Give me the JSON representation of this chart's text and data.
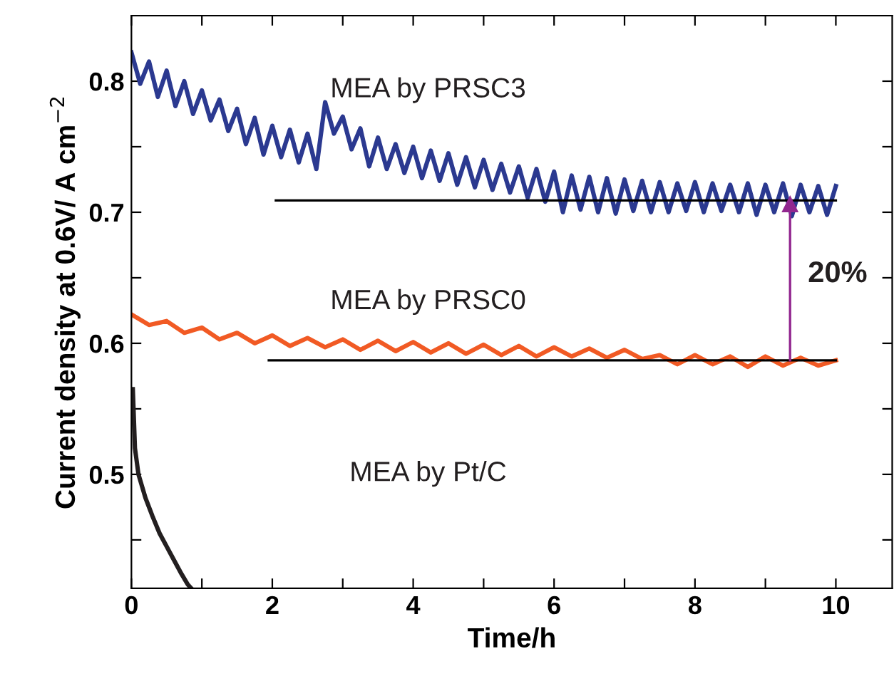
{
  "chart_data": {
    "type": "line",
    "xlabel": "Time/h",
    "ylabel": "Current density at 0.6V/ A cm$^{−2}$",
    "xlim": [
      0,
      10.8
    ],
    "ylim": [
      0.413,
      0.85
    ],
    "xticks": [
      0,
      {
        "value": 1,
        "label": null
      },
      2,
      {
        "value": 3,
        "label": null
      },
      4,
      {
        "value": 5,
        "label": null
      },
      6,
      {
        "value": 7,
        "label": null
      },
      8,
      {
        "value": 9,
        "label": null
      },
      10
    ],
    "yticks": [
      {
        "value": 0.45,
        "label": null
      },
      0.5,
      {
        "value": 0.55,
        "label": null
      },
      0.6,
      {
        "value": 0.65,
        "label": null
      },
      0.7,
      {
        "value": 0.75,
        "label": null
      },
      0.8
    ],
    "grid": false,
    "legend": false,
    "marker": "none",
    "line_style": "solid",
    "series": [
      {
        "name": "MEA by PRSC3",
        "color": "#2b3990",
        "x": [
          0,
          0.125,
          0.25,
          0.375,
          0.5,
          0.625,
          0.75,
          0.875,
          1.0,
          1.125,
          1.25,
          1.375,
          1.5,
          1.625,
          1.75,
          1.875,
          2.0,
          2.125,
          2.25,
          2.375,
          2.5,
          2.625,
          2.75,
          2.875,
          3.0,
          3.125,
          3.25,
          3.375,
          3.5,
          3.625,
          3.75,
          3.875,
          4.0,
          4.125,
          4.25,
          4.375,
          4.5,
          4.625,
          4.75,
          4.875,
          5.0,
          5.125,
          5.25,
          5.375,
          5.5,
          5.625,
          5.75,
          5.875,
          6.0,
          6.125,
          6.25,
          6.375,
          6.5,
          6.625,
          6.75,
          6.875,
          7.0,
          7.125,
          7.25,
          7.375,
          7.5,
          7.625,
          7.75,
          7.875,
          8.0,
          8.125,
          8.25,
          8.375,
          8.5,
          8.625,
          8.75,
          8.875,
          9.0,
          9.125,
          9.25,
          9.375,
          9.5,
          9.625,
          9.75,
          9.875,
          10.0
        ],
        "values": [
          0.822,
          0.798,
          0.815,
          0.788,
          0.808,
          0.781,
          0.8,
          0.775,
          0.793,
          0.77,
          0.786,
          0.762,
          0.779,
          0.752,
          0.772,
          0.744,
          0.766,
          0.742,
          0.763,
          0.738,
          0.76,
          0.733,
          0.784,
          0.76,
          0.773,
          0.748,
          0.764,
          0.735,
          0.757,
          0.733,
          0.752,
          0.73,
          0.75,
          0.726,
          0.747,
          0.724,
          0.745,
          0.721,
          0.742,
          0.719,
          0.74,
          0.717,
          0.737,
          0.715,
          0.735,
          0.711,
          0.733,
          0.708,
          0.731,
          0.7,
          0.728,
          0.702,
          0.727,
          0.7,
          0.726,
          0.699,
          0.725,
          0.701,
          0.724,
          0.7,
          0.723,
          0.7,
          0.722,
          0.701,
          0.723,
          0.7,
          0.722,
          0.701,
          0.721,
          0.7,
          0.722,
          0.698,
          0.721,
          0.7,
          0.722,
          0.697,
          0.721,
          0.7,
          0.72,
          0.698,
          0.72
        ]
      },
      {
        "name": "MEA by PRSC0",
        "color": "#f15a24",
        "x": [
          0,
          0.25,
          0.5,
          0.75,
          1.0,
          1.25,
          1.5,
          1.75,
          2.0,
          2.25,
          2.5,
          2.75,
          3.0,
          3.25,
          3.5,
          3.75,
          4.0,
          4.25,
          4.5,
          4.75,
          5.0,
          5.25,
          5.5,
          5.75,
          6.0,
          6.25,
          6.5,
          6.75,
          7.0,
          7.25,
          7.5,
          7.75,
          8.0,
          8.25,
          8.5,
          8.75,
          9.0,
          9.25,
          9.5,
          9.75,
          10.0
        ],
        "values": [
          0.622,
          0.614,
          0.617,
          0.608,
          0.612,
          0.603,
          0.608,
          0.6,
          0.606,
          0.598,
          0.604,
          0.597,
          0.603,
          0.595,
          0.602,
          0.594,
          0.601,
          0.593,
          0.6,
          0.592,
          0.599,
          0.591,
          0.598,
          0.59,
          0.597,
          0.59,
          0.596,
          0.589,
          0.595,
          0.588,
          0.591,
          0.584,
          0.591,
          0.584,
          0.59,
          0.582,
          0.59,
          0.583,
          0.589,
          0.583,
          0.587
        ]
      },
      {
        "color": "#231f20",
        "x": [
          0.02,
          0.05,
          0.1,
          0.2,
          0.3,
          0.4,
          0.5,
          0.6,
          0.7,
          0.8,
          0.85
        ],
        "values": [
          0.565,
          0.52,
          0.5,
          0.482,
          0.468,
          0.455,
          0.445,
          0.435,
          0.425,
          0.416,
          0.413
        ]
      },
      {
        "color": "#000000",
        "x": [
          2.05,
          10
        ],
        "values": [
          0.709,
          0.709
        ]
      },
      {
        "color": "#000000",
        "x": [
          1.95,
          10
        ],
        "values": [
          0.587,
          0.587
        ]
      },
      {
        "color": "#92278f",
        "x": [
          9.35,
          9.35
        ],
        "values": [
          0.587,
          0.706
        ],
        "marker": "triangle"
      }
    ],
    "annotations": [
      "MEA by Pt/C",
      "20%"
    ]
  }
}
